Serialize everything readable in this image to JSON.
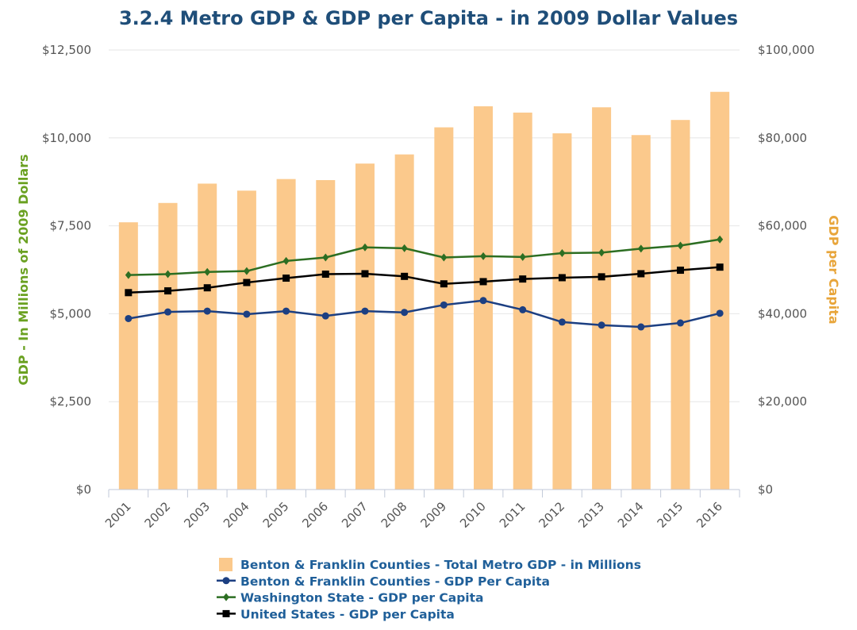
{
  "chart_data": {
    "type": "bar",
    "title": "3.2.4 Metro GDP & GDP per Capita - in 2009 Dollar Values",
    "categories": [
      "2001",
      "2002",
      "2003",
      "2004",
      "2005",
      "2006",
      "2007",
      "2008",
      "2009",
      "2010",
      "2011",
      "2012",
      "2013",
      "2014",
      "2015",
      "2016"
    ],
    "y_left": {
      "label": "GDP - In Millions of 2009 Dollars",
      "ylim": [
        0,
        12500
      ],
      "ticks": [
        0,
        2500,
        5000,
        7500,
        10000,
        12500
      ],
      "tick_labels": [
        "$0",
        "$2,500",
        "$5,000",
        "$7,500",
        "$10,000",
        "$12,500"
      ]
    },
    "y_right": {
      "label": "GDP per Capita",
      "ylim": [
        0,
        100000
      ],
      "ticks": [
        0,
        20000,
        40000,
        60000,
        80000,
        100000
      ],
      "tick_labels": [
        "$0",
        "$20,000",
        "$40,000",
        "$60,000",
        "$80,000",
        "$100,000"
      ]
    },
    "grid": true,
    "legend_position": "bottom",
    "series": [
      {
        "name": "Benton & Franklin Counties - Total Metro GDP - in Millions",
        "type": "bar",
        "axis": "left",
        "color": "#fbc98c",
        "values": [
          7600,
          8150,
          8700,
          8500,
          8830,
          8800,
          9270,
          9530,
          10300,
          10900,
          10720,
          10130,
          10870,
          10080,
          10510,
          11310
        ]
      },
      {
        "name": "Benton & Franklin Counties - GDP Per Capita",
        "type": "line",
        "axis": "right",
        "color": "#1c3f82",
        "marker": "circle",
        "values": [
          38900,
          40400,
          40600,
          39900,
          40600,
          39500,
          40600,
          40300,
          42000,
          43000,
          40900,
          38100,
          37400,
          37000,
          37900,
          40100
        ]
      },
      {
        "name": "Washington State - GDP per Capita",
        "type": "line",
        "axis": "right",
        "color": "#2c6e22",
        "marker": "diamond",
        "values": [
          48800,
          49000,
          49500,
          49700,
          52000,
          52800,
          55100,
          54900,
          52800,
          53100,
          52900,
          53800,
          53900,
          54800,
          55500,
          56900
        ]
      },
      {
        "name": "United States - GDP per Capita",
        "type": "line",
        "axis": "right",
        "color": "#000000",
        "marker": "square",
        "values": [
          44800,
          45200,
          45900,
          47100,
          48100,
          49000,
          49100,
          48500,
          46800,
          47300,
          47900,
          48200,
          48400,
          49100,
          49900,
          50600
        ]
      }
    ]
  }
}
